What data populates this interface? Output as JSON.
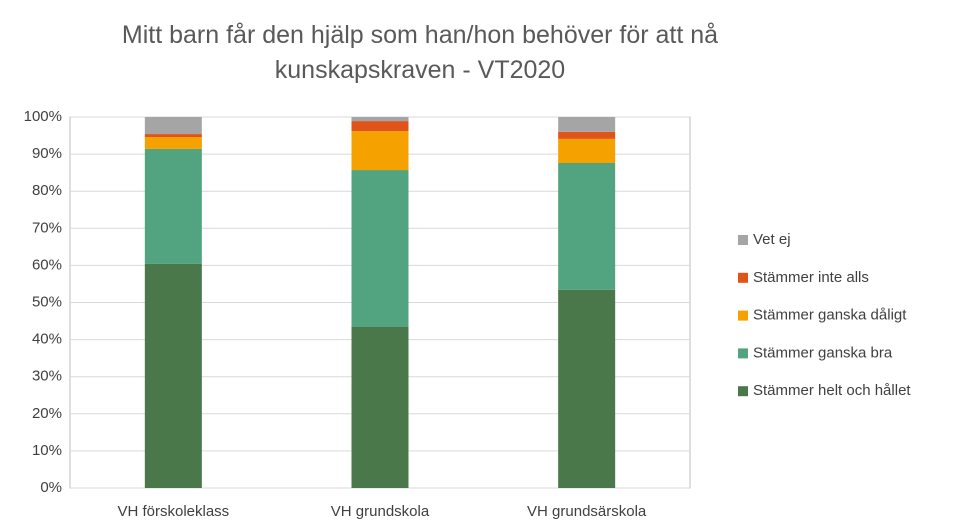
{
  "chart_data": {
    "type": "stacked_bar",
    "title": "Mitt barn får den hjälp som han/hon behöver för att nå kunskapskraven - VT2020",
    "categories": [
      "VH förskoleklass",
      "VH grundskola",
      "VH grundsärskola"
    ],
    "series": [
      {
        "name": "Stämmer helt och hållet",
        "color": "#4a784b",
        "values": [
          60.4,
          43.4,
          53.4
        ]
      },
      {
        "name": "Stämmer ganska bra",
        "color": "#52a37f",
        "values": [
          31,
          42.3,
          34.2
        ]
      },
      {
        "name": "Stämmer ganska dåligt",
        "color": "#f5a100",
        "values": [
          3.2,
          10.5,
          6.5
        ]
      },
      {
        "name": "Stämmer inte alls",
        "color": "#e0541a",
        "values": [
          0.8,
          2.7,
          1.9
        ]
      },
      {
        "name": "Vet ej",
        "color": "#a5a5a5",
        "values": [
          4.6,
          1.1,
          4
        ]
      }
    ],
    "ylim": [
      0,
      100
    ],
    "yticks": [
      {
        "value": 0,
        "label": "0%"
      },
      {
        "value": 10,
        "label": "10%"
      },
      {
        "value": 20,
        "label": "20%"
      },
      {
        "value": 30,
        "label": "30%"
      },
      {
        "value": 40,
        "label": "40%"
      },
      {
        "value": 50,
        "label": "50%"
      },
      {
        "value": 60,
        "label": "60%"
      },
      {
        "value": 70,
        "label": "70%"
      },
      {
        "value": 80,
        "label": "80%"
      },
      {
        "value": 90,
        "label": "90%"
      },
      {
        "value": 100,
        "label": "100%"
      }
    ],
    "grid": true,
    "legend": "right"
  }
}
